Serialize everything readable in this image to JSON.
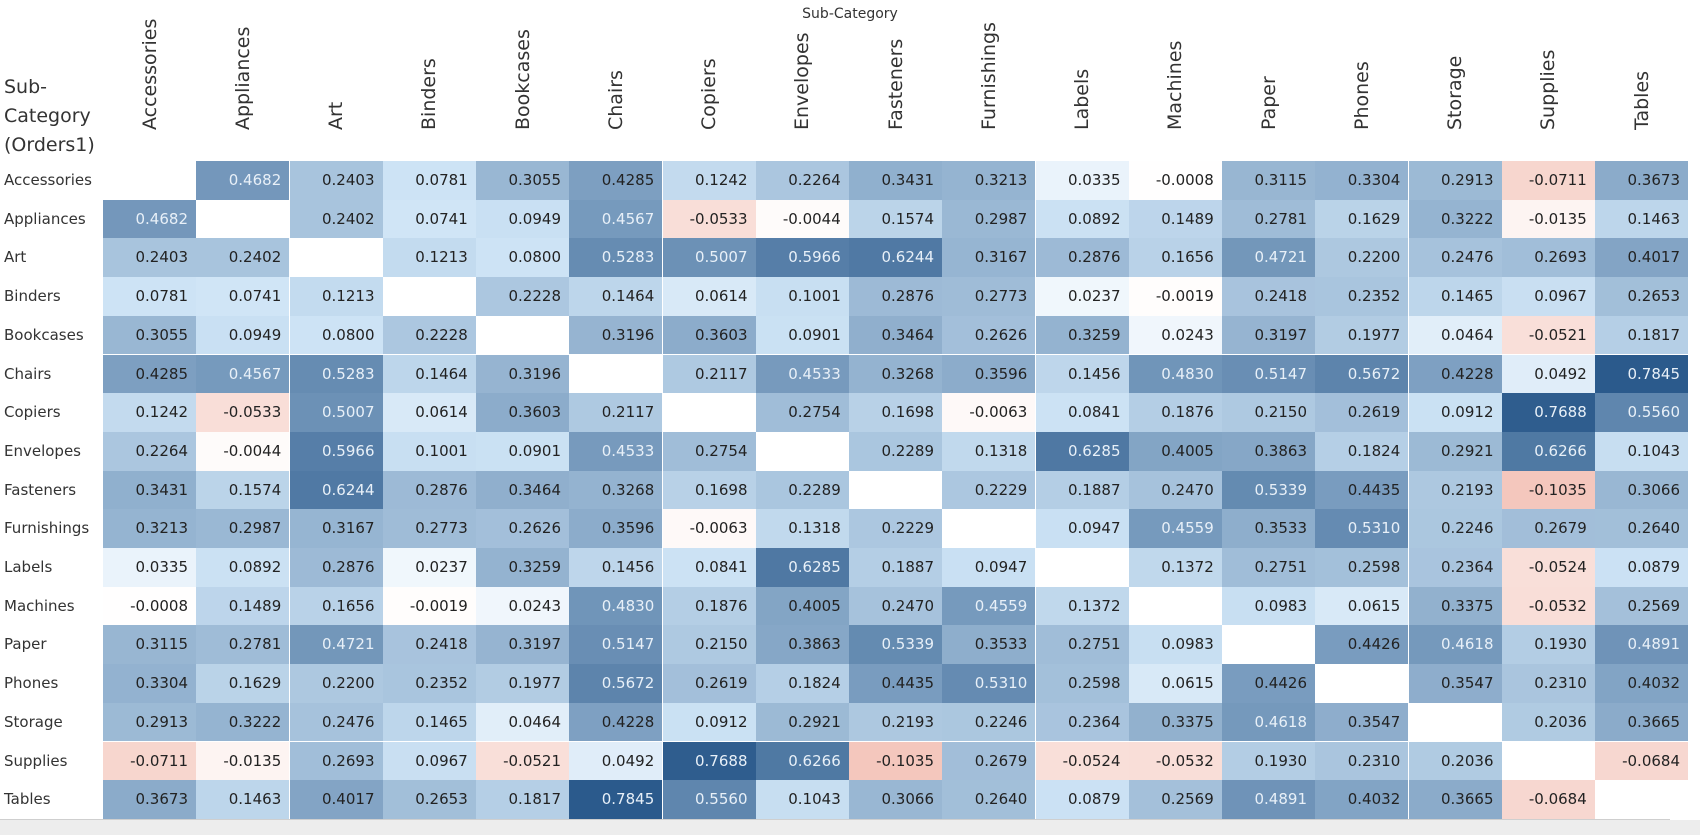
{
  "chart_data": {
    "type": "heatmap",
    "title": "Sub-Category",
    "row_axis_label": "Sub-\nCategory\n(Orders1)",
    "col_axis_label": "Sub-Category",
    "categories": [
      "Accessories",
      "Appliances",
      "Art",
      "Binders",
      "Bookcases",
      "Chairs",
      "Copiers",
      "Envelopes",
      "Fasteners",
      "Furnishings",
      "Labels",
      "Machines",
      "Paper",
      "Phones",
      "Storage",
      "Supplies",
      "Tables"
    ],
    "values": [
      [
        null,
        "0.4682",
        "0.2403",
        "0.0781",
        "0.3055",
        "0.4285",
        "0.1242",
        "0.2264",
        "0.3431",
        "0.3213",
        "0.0335",
        "-0.0008",
        "0.3115",
        "0.3304",
        "0.2913",
        "-0.0711",
        "0.3673"
      ],
      [
        "0.4682",
        null,
        "0.2402",
        "0.0741",
        "0.0949",
        "0.4567",
        "-0.0533",
        "-0.0044",
        "0.1574",
        "0.2987",
        "0.0892",
        "0.1489",
        "0.2781",
        "0.1629",
        "0.3222",
        "-0.0135",
        "0.1463"
      ],
      [
        "0.2403",
        "0.2402",
        null,
        "0.1213",
        "0.0800",
        "0.5283",
        "0.5007",
        "0.5966",
        "0.6244",
        "0.3167",
        "0.2876",
        "0.1656",
        "0.4721",
        "0.2200",
        "0.2476",
        "0.2693",
        "0.4017"
      ],
      [
        "0.0781",
        "0.0741",
        "0.1213",
        null,
        "0.2228",
        "0.1464",
        "0.0614",
        "0.1001",
        "0.2876",
        "0.2773",
        "0.0237",
        "-0.0019",
        "0.2418",
        "0.2352",
        "0.1465",
        "0.0967",
        "0.2653"
      ],
      [
        "0.3055",
        "0.0949",
        "0.0800",
        "0.2228",
        null,
        "0.3196",
        "0.3603",
        "0.0901",
        "0.3464",
        "0.2626",
        "0.3259",
        "0.0243",
        "0.3197",
        "0.1977",
        "0.0464",
        "-0.0521",
        "0.1817"
      ],
      [
        "0.4285",
        "0.4567",
        "0.5283",
        "0.1464",
        "0.3196",
        null,
        "0.2117",
        "0.4533",
        "0.3268",
        "0.3596",
        "0.1456",
        "0.4830",
        "0.5147",
        "0.5672",
        "0.4228",
        "0.0492",
        "0.7845"
      ],
      [
        "0.1242",
        "-0.0533",
        "0.5007",
        "0.0614",
        "0.3603",
        "0.2117",
        null,
        "0.2754",
        "0.1698",
        "-0.0063",
        "0.0841",
        "0.1876",
        "0.2150",
        "0.2619",
        "0.0912",
        "0.7688",
        "0.5560"
      ],
      [
        "0.2264",
        "-0.0044",
        "0.5966",
        "0.1001",
        "0.0901",
        "0.4533",
        "0.2754",
        null,
        "0.2289",
        "0.1318",
        "0.6285",
        "0.4005",
        "0.3863",
        "0.1824",
        "0.2921",
        "0.6266",
        "0.1043"
      ],
      [
        "0.3431",
        "0.1574",
        "0.6244",
        "0.2876",
        "0.3464",
        "0.3268",
        "0.1698",
        "0.2289",
        null,
        "0.2229",
        "0.1887",
        "0.2470",
        "0.5339",
        "0.4435",
        "0.2193",
        "-0.1035",
        "0.3066"
      ],
      [
        "0.3213",
        "0.2987",
        "0.3167",
        "0.2773",
        "0.2626",
        "0.3596",
        "-0.0063",
        "0.1318",
        "0.2229",
        null,
        "0.0947",
        "0.4559",
        "0.3533",
        "0.5310",
        "0.2246",
        "0.2679",
        "0.2640"
      ],
      [
        "0.0335",
        "0.0892",
        "0.2876",
        "0.0237",
        "0.3259",
        "0.1456",
        "0.0841",
        "0.6285",
        "0.1887",
        "0.0947",
        null,
        "0.1372",
        "0.2751",
        "0.2598",
        "0.2364",
        "-0.0524",
        "0.0879"
      ],
      [
        "-0.0008",
        "0.1489",
        "0.1656",
        "-0.0019",
        "0.0243",
        "0.4830",
        "0.1876",
        "0.4005",
        "0.2470",
        "0.4559",
        "0.1372",
        null,
        "0.0983",
        "0.0615",
        "0.3375",
        "-0.0532",
        "0.2569"
      ],
      [
        "0.3115",
        "0.2781",
        "0.4721",
        "0.2418",
        "0.3197",
        "0.5147",
        "0.2150",
        "0.3863",
        "0.5339",
        "0.3533",
        "0.2751",
        "0.0983",
        null,
        "0.4426",
        "0.4618",
        "0.1930",
        "0.4891"
      ],
      [
        "0.3304",
        "0.1629",
        "0.2200",
        "0.2352",
        "0.1977",
        "0.5672",
        "0.2619",
        "0.1824",
        "0.4435",
        "0.5310",
        "0.2598",
        "0.0615",
        "0.4426",
        null,
        "0.3547",
        "0.2310",
        "0.4032"
      ],
      [
        "0.2913",
        "0.3222",
        "0.2476",
        "0.1465",
        "0.0464",
        "0.4228",
        "0.0912",
        "0.2921",
        "0.2193",
        "0.2246",
        "0.2364",
        "0.3375",
        "0.4618",
        "0.3547",
        null,
        "0.2036",
        "0.3665"
      ],
      [
        "-0.0711",
        "-0.0135",
        "0.2693",
        "0.0967",
        "-0.0521",
        "0.0492",
        "0.7688",
        "0.6266",
        "-0.1035",
        "0.2679",
        "-0.0524",
        "-0.0532",
        "0.1930",
        "0.2310",
        "0.2036",
        null,
        "-0.0684"
      ],
      [
        "0.3673",
        "0.1463",
        "0.4017",
        "0.2653",
        "0.1817",
        "0.7845",
        "0.5560",
        "0.1043",
        "0.3066",
        "0.2640",
        "0.0879",
        "0.2569",
        "0.4891",
        "0.4032",
        "0.3665",
        "-0.0684",
        null
      ]
    ],
    "color_scale": {
      "type": "diverging",
      "negative_color": "#f4c7bd",
      "zero_color": "#ffffff",
      "positive_color": "#2b5a8c",
      "domain": [
        -0.1035,
        0.7845
      ]
    },
    "legend": "none",
    "grid": false
  }
}
